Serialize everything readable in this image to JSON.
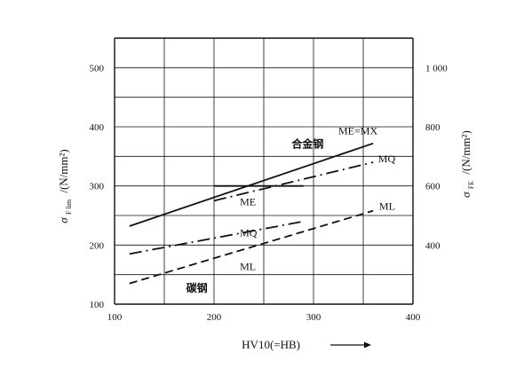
{
  "chart_data": {
    "type": "line",
    "x_axis": {
      "label": "HV10(=HB)",
      "range": [
        100,
        400
      ],
      "ticks": [
        "100",
        "200",
        "300",
        "400"
      ]
    },
    "y_axis_left": {
      "label_symbol": "σ",
      "label_subscript": "F lim",
      "label_unit": "/(N/mm²)",
      "range": [
        100,
        550
      ],
      "ticks": [
        "100",
        "200",
        "300",
        "400",
        "500"
      ]
    },
    "y_axis_right": {
      "label_symbol": "σ",
      "label_subscript": "FE",
      "label_unit": "/(N/mm²)",
      "range": [
        200,
        1100
      ],
      "ticks": [
        "400",
        "600",
        "800",
        "1 000"
      ]
    },
    "grid": true,
    "group_labels": {
      "alloy": "合金钢",
      "carbon": "碳钢"
    },
    "series": [
      {
        "name": "ME=MX",
        "group": "alloy",
        "style": "solid",
        "x": [
          115,
          360
        ],
        "y": [
          232,
          372
        ]
      },
      {
        "name": "MQ",
        "group": "alloy",
        "style": "dashdot",
        "x": [
          200,
          360
        ],
        "y": [
          275,
          340
        ]
      },
      {
        "name": "ME",
        "group": "carbon",
        "style": "solid",
        "x": [
          200,
          290
        ],
        "y": [
          300,
          300
        ]
      },
      {
        "name": "MQ",
        "group": "carbon",
        "style": "dashdot",
        "x": [
          115,
          290
        ],
        "y": [
          185,
          240
        ]
      },
      {
        "name": "ML",
        "group": "carbon",
        "style": "dashed",
        "x": [
          115,
          360
        ],
        "y": [
          135,
          258
        ]
      }
    ],
    "line_labels": [
      {
        "text": "ME=MX",
        "x": 325,
        "y": 387
      },
      {
        "text": "MQ",
        "x": 365,
        "y": 340
      },
      {
        "text": "ME",
        "x": 226,
        "y": 267
      },
      {
        "text": "MQ",
        "x": 226,
        "y": 215
      },
      {
        "text": "ML",
        "x": 366,
        "y": 260
      },
      {
        "text": "ML",
        "x": 226,
        "y": 158
      }
    ],
    "group_label_positions": {
      "alloy": {
        "x": 278,
        "y": 365
      },
      "carbon": {
        "x": 172,
        "y": 121
      }
    },
    "x_title_arrow": "→"
  }
}
